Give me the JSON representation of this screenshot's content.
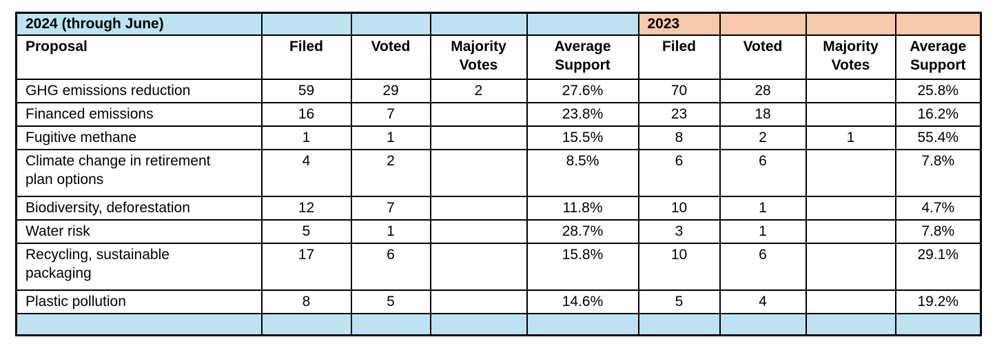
{
  "colors": {
    "light_blue": "#BDE3F2",
    "peach": "#F6C9AB",
    "border": "#000000"
  },
  "chart_data": {
    "type": "table",
    "year_groups": [
      "2024 (through June)",
      "2023"
    ],
    "columns": [
      "Proposal",
      "Filed",
      "Voted",
      "Majority Votes",
      "Average Support",
      "Filed",
      "Voted",
      "Majority Votes",
      "Average Support"
    ],
    "rows": [
      {
        "proposal": "GHG emissions reduction",
        "values": [
          "59",
          "29",
          "2",
          "27.6%",
          "70",
          "28",
          "",
          "25.8%"
        ]
      },
      {
        "proposal": "Financed emissions",
        "values": [
          "16",
          "7",
          "",
          "23.8%",
          "23",
          "18",
          "",
          "16.2%"
        ]
      },
      {
        "proposal": "Fugitive methane",
        "values": [
          "1",
          "1",
          "",
          "15.5%",
          "8",
          "2",
          "1",
          "55.4%"
        ]
      },
      {
        "proposal": "Climate change in retirement plan options",
        "values": [
          "4",
          "2",
          "",
          "8.5%",
          "6",
          "6",
          "",
          "7.8%"
        ]
      },
      {
        "proposal": "Biodiversity, deforestation",
        "values": [
          "12",
          "7",
          "",
          "11.8%",
          "10",
          "1",
          "",
          "4.7%"
        ]
      },
      {
        "proposal": "Water risk",
        "values": [
          "5",
          "1",
          "",
          "28.7%",
          "3",
          "1",
          "",
          "7.8%"
        ]
      },
      {
        "proposal": "Recycling, sustainable packaging",
        "values": [
          "17",
          "6",
          "",
          "15.8%",
          "10",
          "6",
          "",
          "29.1%"
        ]
      },
      {
        "proposal": "Plastic pollution",
        "values": [
          "8",
          "5",
          "",
          "14.6%",
          "5",
          "4",
          "",
          "19.2%"
        ]
      }
    ]
  }
}
